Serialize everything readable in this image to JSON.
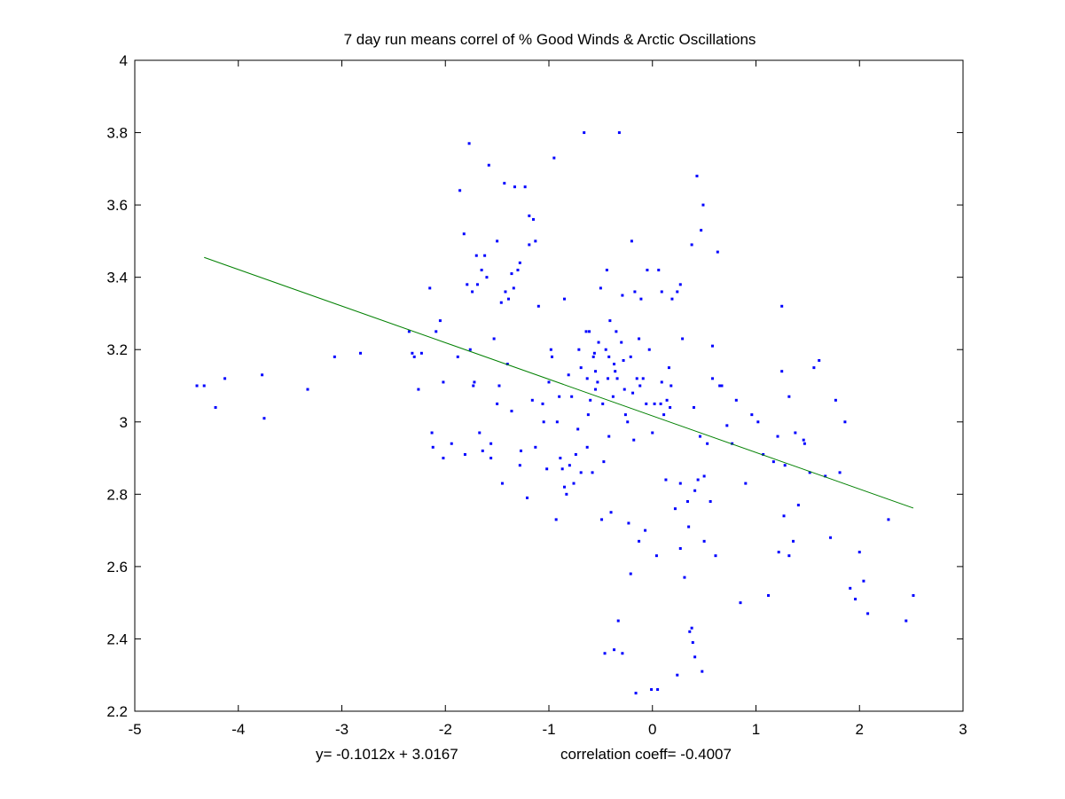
{
  "chart_data": {
    "type": "scatter",
    "title": "7 day run means correl of % Good Winds & Arctic Oscillations",
    "xlabel": "",
    "ylabel": "",
    "xlim": [
      -5,
      3
    ],
    "ylim": [
      2.2,
      4
    ],
    "xticks": [
      "-5",
      "-4",
      "-3",
      "-2",
      "-1",
      "0",
      "1",
      "2",
      "3"
    ],
    "yticks": [
      "2.2",
      "2.4",
      "2.6",
      "2.8",
      "3",
      "3.2",
      "3.4",
      "3.6",
      "3.8",
      "4"
    ],
    "grid": false,
    "colors": {
      "points": "#0000ff",
      "fit_line": "#008000",
      "axes": "#000000"
    },
    "fit_line": {
      "slope": -0.1012,
      "intercept": 3.0167,
      "x_range": [
        -4.33,
        2.52
      ]
    },
    "annotations": {
      "equation": "y= -0.1012x + 3.0167",
      "correlation": "correlation coeff= -0.4007"
    },
    "points": [
      [
        -4.4,
        3.1
      ],
      [
        -4.33,
        3.1
      ],
      [
        -4.22,
        3.04
      ],
      [
        -4.13,
        3.12
      ],
      [
        -3.77,
        3.13
      ],
      [
        -3.75,
        3.01
      ],
      [
        -3.33,
        3.09
      ],
      [
        -3.07,
        3.18
      ],
      [
        -2.82,
        3.19
      ],
      [
        -2.35,
        3.25
      ],
      [
        -2.32,
        3.19
      ],
      [
        -2.3,
        3.18
      ],
      [
        -2.26,
        3.09
      ],
      [
        -2.23,
        3.19
      ],
      [
        -2.15,
        3.37
      ],
      [
        -2.13,
        2.97
      ],
      [
        -2.12,
        2.93
      ],
      [
        -2.09,
        3.25
      ],
      [
        -2.05,
        3.28
      ],
      [
        -2.02,
        2.9
      ],
      [
        -2.02,
        3.11
      ],
      [
        -1.94,
        2.94
      ],
      [
        -1.88,
        3.18
      ],
      [
        -1.86,
        3.64
      ],
      [
        -1.82,
        3.52
      ],
      [
        -1.81,
        2.91
      ],
      [
        -1.79,
        3.38
      ],
      [
        -1.77,
        3.77
      ],
      [
        -1.76,
        3.2
      ],
      [
        -1.74,
        3.36
      ],
      [
        -1.73,
        3.1
      ],
      [
        -1.72,
        3.11
      ],
      [
        -1.7,
        3.46
      ],
      [
        -1.69,
        3.38
      ],
      [
        -1.67,
        2.97
      ],
      [
        -1.65,
        3.42
      ],
      [
        -1.64,
        2.92
      ],
      [
        -1.62,
        3.46
      ],
      [
        -1.6,
        3.4
      ],
      [
        -1.58,
        3.71
      ],
      [
        -1.56,
        2.94
      ],
      [
        -1.56,
        2.9
      ],
      [
        -1.53,
        3.23
      ],
      [
        -1.5,
        3.5
      ],
      [
        -1.48,
        3.1
      ],
      [
        -1.46,
        3.33
      ],
      [
        -1.45,
        2.83
      ],
      [
        -1.43,
        3.66
      ],
      [
        -1.42,
        3.36
      ],
      [
        -1.4,
        3.16
      ],
      [
        -1.39,
        3.34
      ],
      [
        -1.36,
        3.41
      ],
      [
        -1.34,
        3.37
      ],
      [
        -1.33,
        3.65
      ],
      [
        -1.3,
        3.42
      ],
      [
        -1.28,
        3.44
      ],
      [
        -1.27,
        2.92
      ],
      [
        -1.23,
        3.65
      ],
      [
        -1.21,
        2.79
      ],
      [
        -1.19,
        3.49
      ],
      [
        -1.19,
        3.57
      ],
      [
        -1.16,
        3.06
      ],
      [
        -1.15,
        3.56
      ],
      [
        -1.13,
        3.5
      ],
      [
        -1.13,
        2.93
      ],
      [
        -1.1,
        3.32
      ],
      [
        -1.05,
        3.0
      ],
      [
        -1.0,
        3.11
      ],
      [
        -0.98,
        3.2
      ],
      [
        -0.97,
        3.18
      ],
      [
        -0.95,
        3.73
      ],
      [
        -0.93,
        2.73
      ],
      [
        -0.9,
        3.07
      ],
      [
        -0.89,
        2.9
      ],
      [
        -0.87,
        2.87
      ],
      [
        -0.85,
        3.34
      ],
      [
        -0.83,
        2.8
      ],
      [
        -0.81,
        3.13
      ],
      [
        -0.78,
        3.07
      ],
      [
        -0.76,
        2.83
      ],
      [
        -0.72,
        2.98
      ],
      [
        -0.71,
        3.2
      ],
      [
        -0.69,
        3.15
      ],
      [
        -0.66,
        3.8
      ],
      [
        -0.64,
        3.25
      ],
      [
        -0.63,
        3.12
      ],
      [
        -0.61,
        3.25
      ],
      [
        -0.6,
        3.06
      ],
      [
        -0.58,
        2.86
      ],
      [
        -0.56,
        3.19
      ],
      [
        -0.55,
        3.09
      ],
      [
        -0.53,
        3.11
      ],
      [
        -0.52,
        3.22
      ],
      [
        -0.5,
        3.37
      ],
      [
        -0.49,
        2.73
      ],
      [
        -0.47,
        2.89
      ],
      [
        -0.45,
        3.2
      ],
      [
        -0.44,
        3.42
      ],
      [
        -0.43,
        3.12
      ],
      [
        -0.41,
        3.28
      ],
      [
        -0.4,
        2.75
      ],
      [
        -0.38,
        3.07
      ],
      [
        -0.37,
        3.16
      ],
      [
        -0.35,
        3.25
      ],
      [
        -0.33,
        2.45
      ],
      [
        -0.32,
        3.8
      ],
      [
        -0.3,
        3.22
      ],
      [
        -0.29,
        3.35
      ],
      [
        -0.27,
        3.09
      ],
      [
        -0.26,
        3.02
      ],
      [
        -0.24,
        3.0
      ],
      [
        -0.23,
        2.72
      ],
      [
        -0.21,
        2.58
      ],
      [
        -0.2,
        3.5
      ],
      [
        -0.17,
        3.36
      ],
      [
        -0.15,
        3.12
      ],
      [
        -0.13,
        2.67
      ],
      [
        -0.11,
        3.34
      ],
      [
        -0.09,
        3.12
      ],
      [
        -0.07,
        2.7
      ],
      [
        -0.05,
        3.42
      ],
      [
        -0.03,
        3.2
      ],
      [
        -0.01,
        2.26
      ],
      [
        0.02,
        3.05
      ],
      [
        0.04,
        2.63
      ],
      [
        0.06,
        3.42
      ],
      [
        0.09,
        3.11
      ],
      [
        0.11,
        3.02
      ],
      [
        0.14,
        3.06
      ],
      [
        0.17,
        3.04
      ],
      [
        0.19,
        3.34
      ],
      [
        0.22,
        2.76
      ],
      [
        0.24,
        2.3
      ],
      [
        0.27,
        2.65
      ],
      [
        0.29,
        3.23
      ],
      [
        0.31,
        2.57
      ],
      [
        0.34,
        2.78
      ],
      [
        0.36,
        2.42
      ],
      [
        0.38,
        3.49
      ],
      [
        0.41,
        2.81
      ],
      [
        0.43,
        3.68
      ],
      [
        0.46,
        2.96
      ],
      [
        0.48,
        2.31
      ],
      [
        0.5,
        2.67
      ],
      [
        0.53,
        2.94
      ],
      [
        0.56,
        2.78
      ],
      [
        0.58,
        3.12
      ],
      [
        0.61,
        2.63
      ],
      [
        0.63,
        3.47
      ],
      [
        0.67,
        3.1
      ],
      [
        0.72,
        2.99
      ],
      [
        0.77,
        2.94
      ],
      [
        0.81,
        3.06
      ],
      [
        0.85,
        2.5
      ],
      [
        0.9,
        2.83
      ],
      [
        0.96,
        3.02
      ],
      [
        1.02,
        3.0
      ],
      [
        1.07,
        2.91
      ],
      [
        1.12,
        2.52
      ],
      [
        1.17,
        2.89
      ],
      [
        1.22,
        2.64
      ],
      [
        1.27,
        2.74
      ],
      [
        1.32,
        3.07
      ],
      [
        1.36,
        2.67
      ],
      [
        1.41,
        2.77
      ],
      [
        1.46,
        2.95
      ],
      [
        1.52,
        2.86
      ],
      [
        1.56,
        3.15
      ],
      [
        1.61,
        3.17
      ],
      [
        1.67,
        2.85
      ],
      [
        1.72,
        2.68
      ],
      [
        1.77,
        3.06
      ],
      [
        1.81,
        2.86
      ],
      [
        1.86,
        3.0
      ],
      [
        1.91,
        2.54
      ],
      [
        1.96,
        2.51
      ],
      [
        2.0,
        2.64
      ],
      [
        2.04,
        2.56
      ],
      [
        2.08,
        2.47
      ],
      [
        2.28,
        2.73
      ],
      [
        2.45,
        2.45
      ],
      [
        2.52,
        2.52
      ],
      [
        -0.62,
        3.02
      ],
      [
        -0.57,
        3.18
      ],
      [
        -0.48,
        3.05
      ],
      [
        -0.36,
        3.14
      ],
      [
        -0.28,
        3.17
      ],
      [
        -0.19,
        3.08
      ],
      [
        -0.12,
        3.1
      ],
      [
        -0.06,
        3.05
      ],
      [
        0.08,
        3.05
      ],
      [
        0.16,
        3.15
      ],
      [
        -0.85,
        2.82
      ],
      [
        -0.74,
        2.91
      ],
      [
        -0.69,
        2.86
      ],
      [
        -0.42,
        2.96
      ],
      [
        -0.18,
        2.95
      ],
      [
        0.0,
        2.97
      ],
      [
        0.13,
        2.84
      ],
      [
        0.27,
        2.83
      ],
      [
        0.35,
        2.71
      ],
      [
        0.44,
        2.84
      ],
      [
        0.5,
        2.85
      ],
      [
        -1.28,
        2.88
      ],
      [
        -1.5,
        3.05
      ],
      [
        -1.36,
        3.03
      ],
      [
        -1.06,
        3.05
      ],
      [
        -0.92,
        3.0
      ],
      [
        -0.8,
        2.88
      ],
      [
        -1.02,
        2.87
      ],
      [
        -0.63,
        2.93
      ],
      [
        -0.55,
        3.14
      ],
      [
        -0.34,
        3.12
      ],
      [
        -0.21,
        3.18
      ],
      [
        0.39,
        2.39
      ],
      [
        0.38,
        2.43
      ],
      [
        0.41,
        2.35
      ],
      [
        0.27,
        3.38
      ],
      [
        0.24,
        3.36
      ],
      [
        0.09,
        3.36
      ],
      [
        0.18,
        3.1
      ],
      [
        0.4,
        3.04
      ],
      [
        0.47,
        3.53
      ],
      [
        0.49,
        3.6
      ],
      [
        0.58,
        3.21
      ],
      [
        0.65,
        3.1
      ],
      [
        1.21,
        2.96
      ],
      [
        1.25,
        3.32
      ],
      [
        1.25,
        3.14
      ],
      [
        1.28,
        2.88
      ],
      [
        1.32,
        2.63
      ],
      [
        1.38,
        2.97
      ],
      [
        1.47,
        2.94
      ],
      [
        -0.16,
        2.25
      ],
      [
        -0.29,
        2.36
      ],
      [
        -0.37,
        2.37
      ],
      [
        -0.46,
        2.36
      ],
      [
        0.05,
        2.26
      ],
      [
        -0.42,
        3.18
      ],
      [
        -0.13,
        3.23
      ]
    ]
  }
}
